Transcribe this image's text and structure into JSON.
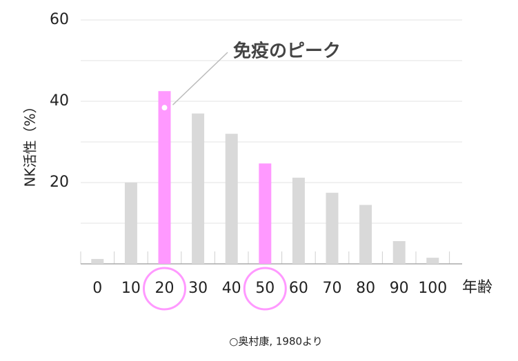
{
  "chart_data": {
    "type": "bar",
    "annotation": "免疫のピーク",
    "x_label": "年齢",
    "y_label": "NK活性（%）",
    "source": "○奥村康, 1980より",
    "categories": [
      "0",
      "10",
      "20",
      "30",
      "40",
      "50",
      "60",
      "70",
      "80",
      "90",
      "100"
    ],
    "values": [
      1.2,
      20,
      42.5,
      37,
      32,
      24.7,
      21.2,
      17.5,
      14.5,
      5.6,
      1.5
    ],
    "color": "#d9d9d9",
    "colors": [
      "#d9d9d9",
      "#d9d9d9",
      "#ff99ff",
      "#d9d9d9",
      "#d9d9d9",
      "#ff99ff",
      "#d9d9d9",
      "#d9d9d9",
      "#d9d9d9",
      "#d9d9d9",
      "#d9d9d9"
    ],
    "ylim": [
      0,
      60
    ],
    "yticks": [
      20,
      40,
      60
    ],
    "minor_grid": [
      10,
      30,
      50
    ],
    "grid": true
  }
}
